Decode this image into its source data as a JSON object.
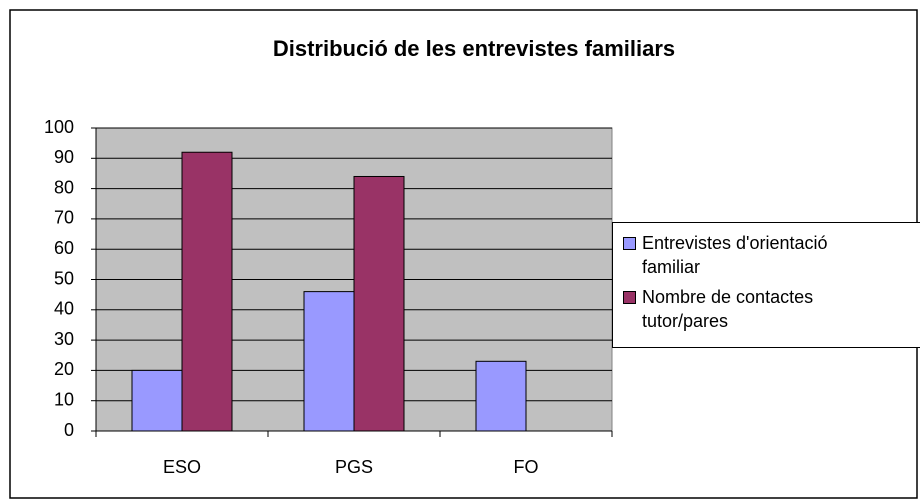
{
  "chart_data": {
    "type": "bar",
    "title": "Distribució de les entrevistes familiars",
    "categories": [
      "ESO",
      "PGS",
      "FO"
    ],
    "series": [
      {
        "name": "Entrevistes d'orientació familiar",
        "color": "#9999ff",
        "values": [
          20,
          46,
          23
        ]
      },
      {
        "name": "Nombre de contactes tutor/pares",
        "color": "#993366",
        "values": [
          92,
          84,
          null
        ]
      }
    ],
    "ylim": [
      0,
      100
    ],
    "yticks": [
      0,
      10,
      20,
      30,
      40,
      50,
      60,
      70,
      80,
      90,
      100
    ],
    "grid": true,
    "legend": "right"
  }
}
